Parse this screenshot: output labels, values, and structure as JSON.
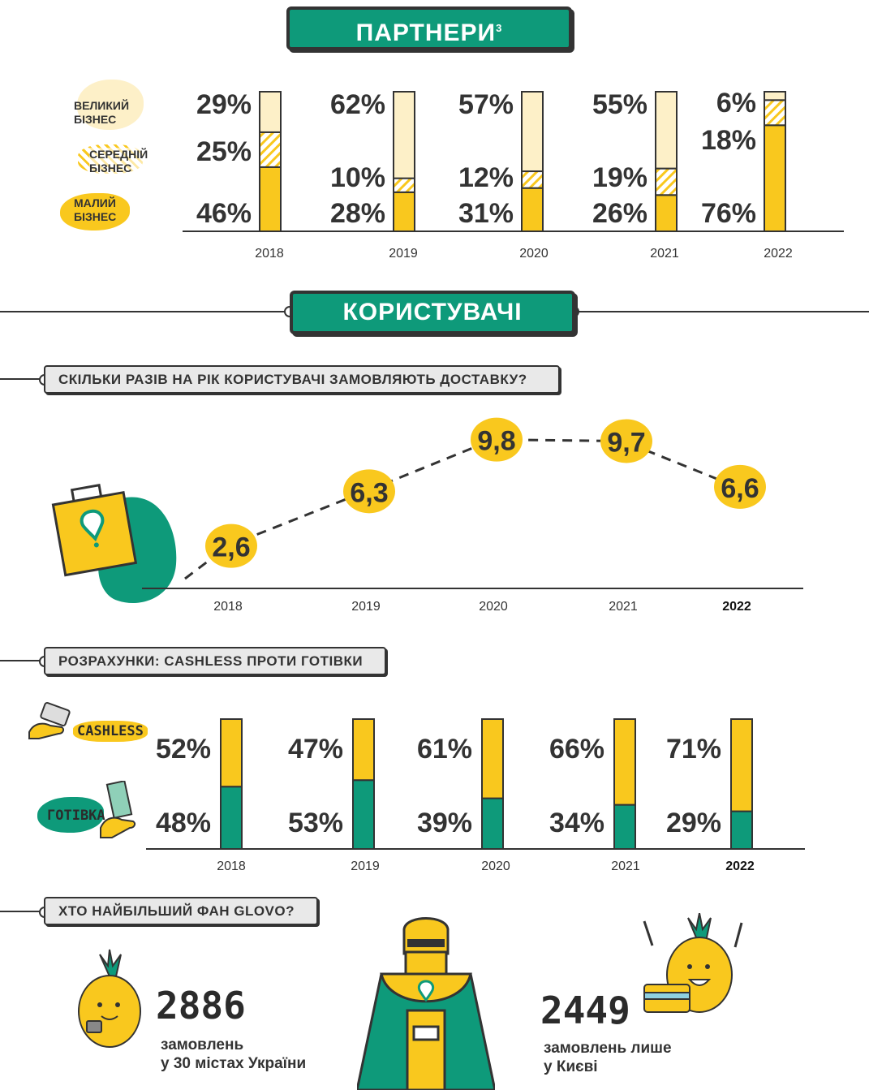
{
  "partners": {
    "title": "ПАРТНЕРИ",
    "footnote": "3",
    "legend": [
      {
        "label": "ВЕЛИКИЙ БІЗНЕС",
        "line1": "ВЕЛИКИЙ",
        "line2": "БІЗНЕС"
      },
      {
        "label": "СЕРЕДНІЙ БІЗНЕС",
        "line1": "СЕРЕДНІЙ",
        "line2": "БІЗНЕС"
      },
      {
        "label": "МАЛИЙ БІЗНЕС",
        "line1": "МАЛИЙ",
        "line2": "БІЗНЕС"
      }
    ]
  },
  "users": {
    "title": "КОРИСТУВАЧІ",
    "q1": "СКІЛЬКИ РАЗІВ НА РІК КОРИСТУВАЧІ ЗАМОВЛЯЮТЬ ДОСТАВКУ?",
    "q2": "РОЗРАХУНКИ: CASHLESS ПРОТИ ГОТІВКИ",
    "q3": "ХТО НАЙБІЛЬШИЙ ФАН GLOVO?",
    "cashless_label": "CASHLESS",
    "cash_label": "ГОТІВКА"
  },
  "fan": {
    "left_number": "2886",
    "left_text1": "замовлень",
    "left_text2": "у 30 містах України",
    "right_number": "2449",
    "right_text1": "замовлень лише",
    "right_text2": "у Києві"
  },
  "colors": {
    "yellow": "#f9c81e",
    "light_yellow": "#fdf0c8",
    "green": "#0e9a7a",
    "dark": "#333333"
  },
  "chart_data": [
    {
      "type": "bar",
      "stacked": true,
      "categories": [
        "2018",
        "2019",
        "2020",
        "2021",
        "2022"
      ],
      "series": [
        {
          "name": "МАЛИЙ БІЗНЕС",
          "values": [
            46,
            28,
            31,
            26,
            76
          ],
          "labels": [
            "46%",
            "28%",
            "31%",
            "26%",
            "76%"
          ]
        },
        {
          "name": "СЕРЕДНІЙ БІЗНЕС",
          "values": [
            25,
            10,
            12,
            19,
            18
          ],
          "labels": [
            "25%",
            "10%",
            "12%",
            "19%",
            "18%"
          ]
        },
        {
          "name": "ВЕЛИКИЙ БІЗНЕС",
          "values": [
            29,
            62,
            57,
            55,
            6
          ],
          "labels": [
            "29%",
            "62%",
            "57%",
            "55%",
            "6%"
          ]
        }
      ]
    },
    {
      "type": "line",
      "x": [
        "2018",
        "2019",
        "2020",
        "2021",
        "2022"
      ],
      "values": [
        2.6,
        6.3,
        9.8,
        9.7,
        6.6
      ],
      "labels": [
        "2,6",
        "6,3",
        "9,8",
        "9,7",
        "6,6"
      ]
    },
    {
      "type": "bar",
      "stacked": true,
      "categories": [
        "2018",
        "2019",
        "2020",
        "2021",
        "2022"
      ],
      "series": [
        {
          "name": "ГОТІВКА",
          "values": [
            48,
            53,
            39,
            34,
            29
          ],
          "labels": [
            "48%",
            "53%",
            "39%",
            "34%",
            "29%"
          ]
        },
        {
          "name": "CASHLESS",
          "values": [
            52,
            47,
            61,
            66,
            71
          ],
          "labels": [
            "52%",
            "47%",
            "61%",
            "66%",
            "71%"
          ]
        }
      ]
    }
  ]
}
